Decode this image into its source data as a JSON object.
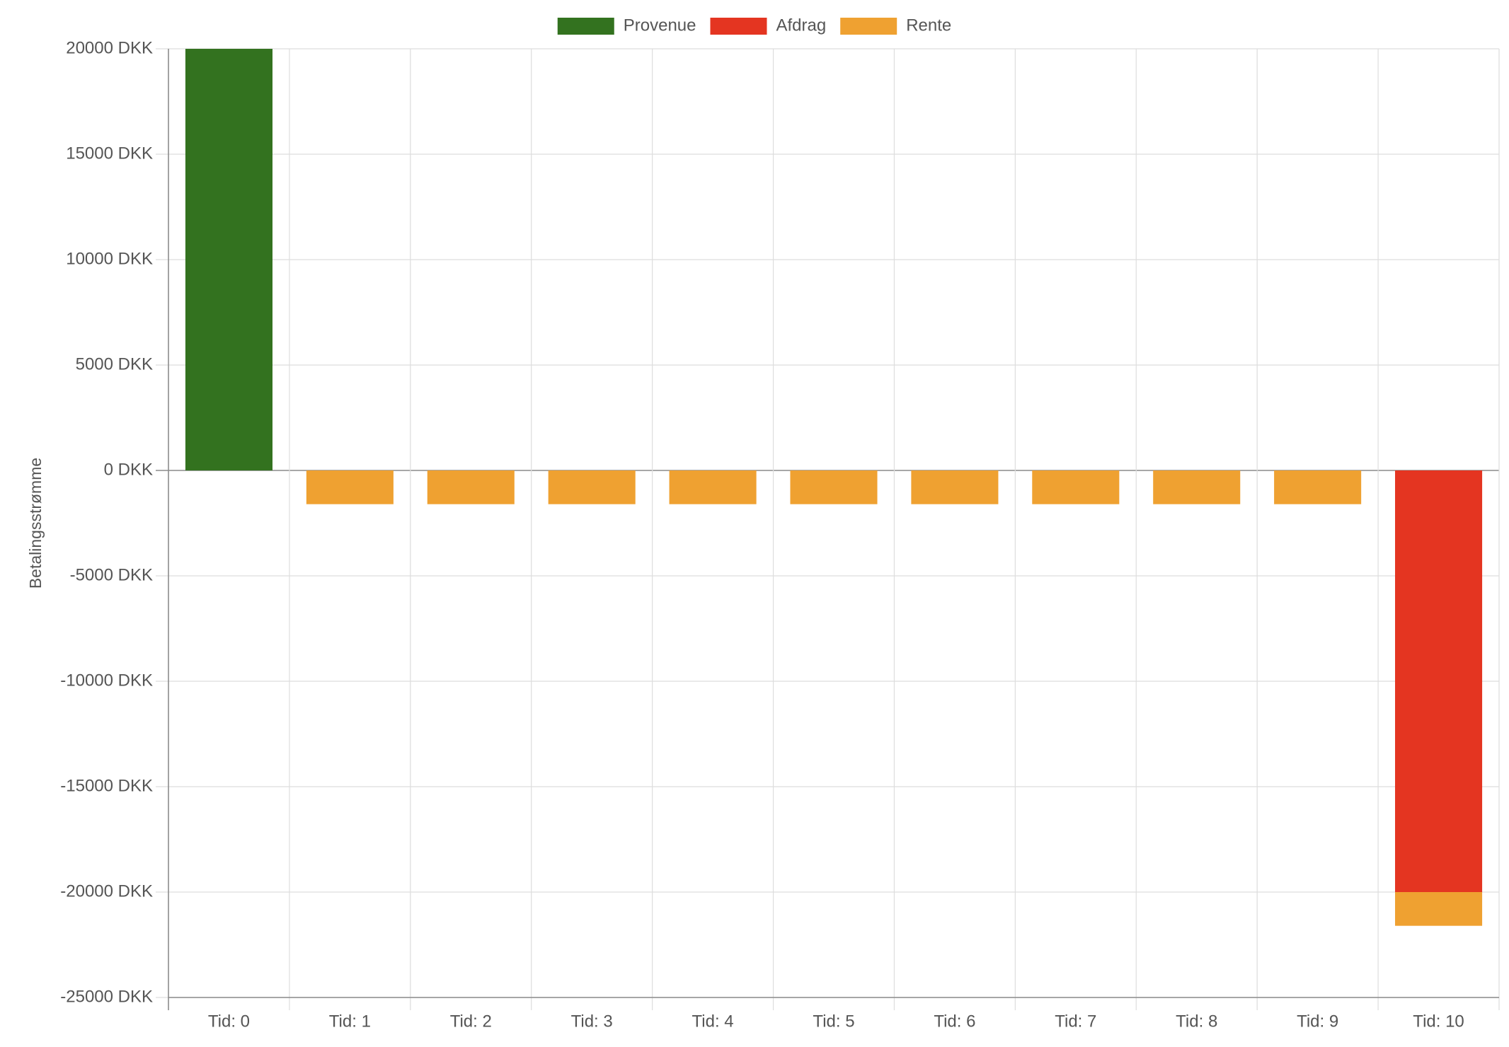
{
  "chart_data": {
    "type": "bar",
    "stacked": true,
    "categories": [
      "Tid: 0",
      "Tid: 1",
      "Tid: 2",
      "Tid: 3",
      "Tid: 4",
      "Tid: 5",
      "Tid: 6",
      "Tid: 7",
      "Tid: 8",
      "Tid: 9",
      "Tid: 10"
    ],
    "series": [
      {
        "name": "Provenue",
        "color": "#33721f",
        "values": [
          20000,
          0,
          0,
          0,
          0,
          0,
          0,
          0,
          0,
          0,
          0
        ]
      },
      {
        "name": "Afdrag",
        "color": "#e43521",
        "values": [
          0,
          0,
          0,
          0,
          0,
          0,
          0,
          0,
          0,
          0,
          -20000
        ]
      },
      {
        "name": "Rente",
        "color": "#efa131",
        "values": [
          0,
          -1600,
          -1600,
          -1600,
          -1600,
          -1600,
          -1600,
          -1600,
          -1600,
          -1600,
          -1600
        ]
      }
    ],
    "title": "",
    "xlabel": "",
    "ylabel": "Betalingsstrømme",
    "ylim": [
      -25000,
      20000
    ],
    "yticks": [
      20000,
      15000,
      10000,
      5000,
      0,
      -5000,
      -10000,
      -15000,
      -20000,
      -25000
    ],
    "ytick_labels": [
      "20000 DKK",
      "15000 DKK",
      "10000 DKK",
      "5000 DKK",
      "0 DKK",
      "-5000 DKK",
      "-10000 DKK",
      "-15000 DKK",
      "-20000 DKK",
      "-25000 DKK"
    ],
    "grid": true,
    "legend_position": "top-center"
  }
}
